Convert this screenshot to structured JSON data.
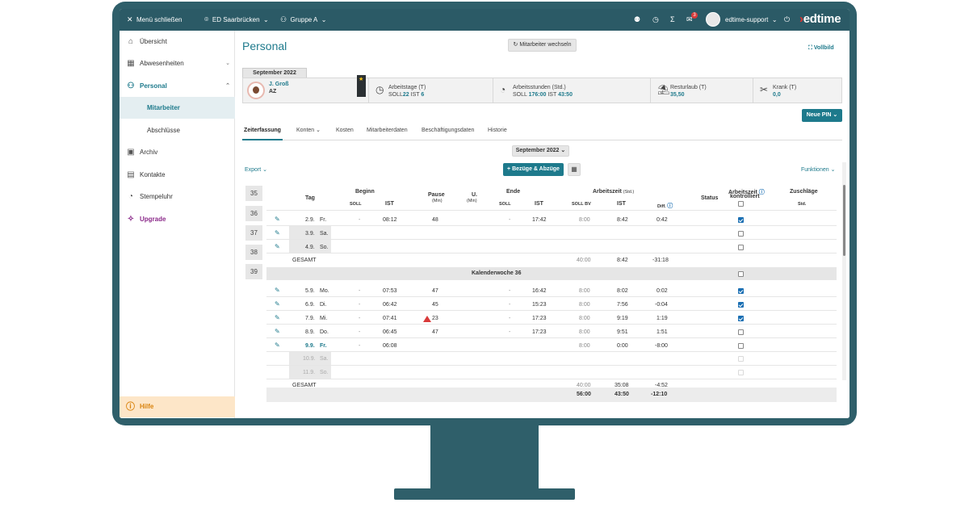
{
  "topbar": {
    "menu_close": "Menü schließen",
    "location": "ED Saarbrücken",
    "group": "Gruppe A",
    "mail_badge": "3",
    "user": "edtime-support",
    "logo_x": "›",
    "logo_text": "edtime",
    "icons": [
      "close-icon",
      "location-pin-icon",
      "group-icon",
      "user-plus-icon",
      "clock-icon",
      "sigma-icon",
      "mail-icon",
      "power-icon"
    ]
  },
  "sidebar": {
    "items": [
      {
        "label": "Übersicht",
        "icon": "home-icon"
      },
      {
        "label": "Abwesenheiten",
        "icon": "calendar-icon"
      },
      {
        "label": "Personal",
        "icon": "people-icon"
      },
      {
        "label": "Mitarbeiter"
      },
      {
        "label": "Abschlüsse"
      },
      {
        "label": "Archiv",
        "icon": "archive-icon"
      },
      {
        "label": "Kontakte",
        "icon": "contacts-icon"
      },
      {
        "label": "Stempeluhr",
        "icon": "stopwatch-icon"
      },
      {
        "label": "Upgrade",
        "icon": "magic-wand-icon"
      }
    ],
    "help": "Hilfe"
  },
  "main": {
    "title": "Personal",
    "switch_button": "Mitarbeiter wechseln",
    "fullscreen": "Vollbild",
    "month_tab": "September 2022",
    "employee": {
      "name": "J. Groß",
      "code": "AZ"
    },
    "stats": {
      "arbeitstage_label": "Arbeitstage (T)",
      "arbeitstage_soll_label": "SOLL",
      "arbeitstage_soll": "22",
      "arbeitstage_ist_label": "IST",
      "arbeitstage_ist": "6",
      "arbeitsstunden_label": "Arbeitsstunden (Std.)",
      "arbeitsstunden_soll_label": "SOLL",
      "arbeitsstunden_soll": "176:00",
      "arbeitsstunden_ist_label": "IST",
      "arbeitsstunden_ist": "43:50",
      "resturlaub_label": "Resturlaub (T)",
      "resturlaub": "35,50",
      "krank_label": "Krank (T)",
      "krank": "0,0"
    },
    "new_pin": "Neue PIN ⌄",
    "tabs": [
      {
        "label": "Zeiterfassung"
      },
      {
        "label": "Konten ⌄"
      },
      {
        "label": "Kosten"
      },
      {
        "label": "Mitarbeiterdaten"
      },
      {
        "label": "Beschäftigungsdaten"
      },
      {
        "label": "Historie"
      }
    ],
    "month_select": "September 2022 ⌄",
    "export": "Export ⌄",
    "bezuege_button": "+ Bezüge & Abzüge",
    "funktionen": "Funktionen ⌄",
    "weeks": [
      "35",
      "36",
      "37",
      "38",
      "39"
    ]
  },
  "table": {
    "headers": {
      "tag": "Tag",
      "beginn": "Beginn",
      "beginn_soll": "SOLL",
      "beginn_ist": "IST",
      "pause": "Pause",
      "pause_unit": "(Min)",
      "u": "U.",
      "u_unit": "(Min)",
      "ende": "Ende",
      "ende_soll": "SOLL",
      "ende_ist": "IST",
      "arbeitszeit": "Arbeitszeit",
      "arbeitszeit_unit": "(Std.)",
      "soll_bv": "SOLL BV",
      "az_ist": "IST",
      "diff": "Diff.",
      "status": "Status",
      "kontrolliert_1": "Arbeitszeit",
      "kontrolliert_2": "kontrolliert",
      "zuschlaege": "Zuschläge",
      "zuschlaege_unit": "Std."
    },
    "rows": [
      {
        "date": "2.9.",
        "day": "Fr.",
        "beginn_soll": "-",
        "beginn_ist": "08:12",
        "pause": "48",
        "ende_soll": "-",
        "ende_ist": "17:42",
        "soll_bv": "8:00",
        "ist": "8:42",
        "diff": "0:42",
        "checked": true
      },
      {
        "date": "3.9.",
        "day": "Sa.",
        "checked": false
      },
      {
        "date": "4.9.",
        "day": "So.",
        "checked": false
      }
    ],
    "gesamt_1": {
      "label": "GESAMT",
      "soll_bv": "40:00",
      "ist": "8:42",
      "diff": "-31:18"
    },
    "kw_label": "Kalenderwoche 36",
    "rows2": [
      {
        "date": "5.9.",
        "day": "Mo.",
        "beginn_soll": "-",
        "beginn_ist": "07:53",
        "pause": "47",
        "ende_soll": "-",
        "ende_ist": "16:42",
        "soll_bv": "8:00",
        "ist": "8:02",
        "diff": "0:02",
        "checked": true
      },
      {
        "date": "6.9.",
        "day": "Di.",
        "beginn_soll": "-",
        "beginn_ist": "06:42",
        "pause": "45",
        "ende_soll": "-",
        "ende_ist": "15:23",
        "soll_bv": "8:00",
        "ist": "7:56",
        "diff": "-0:04",
        "checked": true
      },
      {
        "date": "7.9.",
        "day": "Mi.",
        "beginn_soll": "-",
        "beginn_ist": "07:41",
        "pause": "23",
        "ende_soll": "-",
        "ende_ist": "17:23",
        "soll_bv": "8:00",
        "ist": "9:19",
        "diff": "1:19",
        "checked": true
      },
      {
        "date": "8.9.",
        "day": "Do.",
        "beginn_soll": "-",
        "beginn_ist": "06:45",
        "pause": "47",
        "ende_soll": "-",
        "ende_ist": "17:23",
        "soll_bv": "8:00",
        "ist": "9:51",
        "diff": "1:51",
        "checked": false
      },
      {
        "date": "9.9.",
        "day": "Fr.",
        "beginn_soll": "-",
        "beginn_ist": "06:08",
        "soll_bv": "8:00",
        "ist": "0:00",
        "diff": "-8:00",
        "checked": false
      },
      {
        "date": "10.9.",
        "day": "Sa."
      },
      {
        "date": "11.9.",
        "day": "So."
      }
    ],
    "gesamt_2": {
      "label": "GESAMT",
      "soll_bv": "40:00",
      "ist": "35:08",
      "diff": "-4:52"
    },
    "totals": {
      "soll_bv": "56:00",
      "ist": "43:50",
      "diff": "-12:10"
    }
  }
}
